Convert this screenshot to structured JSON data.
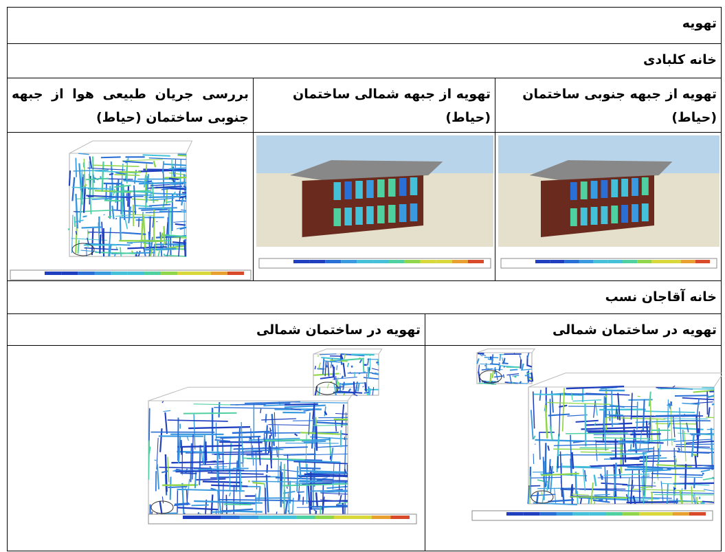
{
  "table": {
    "rows": [
      [
        "تهویه"
      ],
      [
        "خانه کلبادی"
      ],
      [
        "تهویه از جبهه جنوبی ساختمان (حیاط)",
        "تهویه از جبهه شمالی ساختمان (حیاط)",
        "بررسی جریان طبیعی هوا از جبهه جنوبی ساختمان (حیاط)"
      ],
      [
        "خانه آقاجان نسب"
      ],
      [
        "تهویه در ساختمان شمالی",
        "تهویه در ساختمان شمالی"
      ]
    ]
  }
}
